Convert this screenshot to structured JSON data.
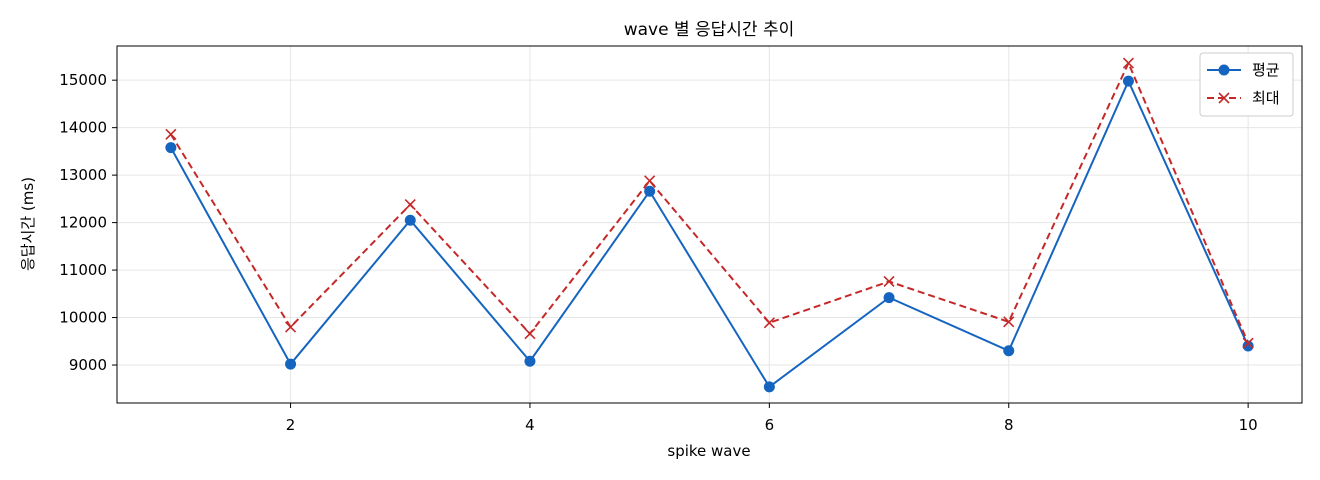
{
  "chart_data": {
    "type": "line",
    "title": "wave 별 응답시간 추이",
    "xlabel": "spike wave",
    "ylabel": "응답시간 (ms)",
    "x": [
      1,
      2,
      3,
      4,
      5,
      6,
      7,
      8,
      9,
      10
    ],
    "xlim": [
      0.55,
      10.45
    ],
    "ylim": [
      8200,
      15720
    ],
    "xticks": [
      2,
      4,
      6,
      8,
      10
    ],
    "yticks": [
      9000,
      10000,
      11000,
      12000,
      13000,
      14000,
      15000
    ],
    "grid": true,
    "legend_position": "top-right",
    "series": [
      {
        "name": "평균",
        "color": "#1565c0",
        "line_style": "solid",
        "marker": "circle",
        "values": [
          13580,
          9020,
          12050,
          9080,
          12660,
          8540,
          10420,
          9300,
          14980,
          9400
        ]
      },
      {
        "name": "최대",
        "color": "#c62828",
        "line_style": "dashed",
        "marker": "x",
        "values": [
          13860,
          9800,
          12380,
          9660,
          12880,
          9890,
          10760,
          9910,
          15360,
          9460
        ]
      }
    ]
  }
}
